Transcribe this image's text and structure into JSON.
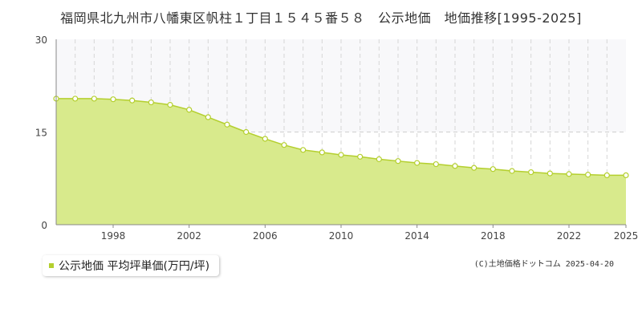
{
  "chart_data": {
    "type": "area",
    "title": "福岡県北九州市八幡東区帆柱１丁目１５４５番５８　公示地価　地価推移[1995-2025]",
    "xlabel": "",
    "ylabel": "",
    "ylim": [
      0,
      30
    ],
    "xlim": [
      1995,
      2025
    ],
    "y_ticks": [
      "0",
      "15",
      "30"
    ],
    "x_ticks": [
      "1998",
      "2002",
      "2006",
      "2010",
      "2014",
      "2018",
      "2022",
      "2025"
    ],
    "grid": true,
    "legend_position": "bottom-left",
    "series": [
      {
        "name": "公示地価 平均坪単価(万円/坪)",
        "color": "#d8ea8c",
        "line_color": "#b4cf2e",
        "x": [
          1995,
          1996,
          1997,
          1998,
          1999,
          2000,
          2001,
          2002,
          2003,
          2004,
          2005,
          2006,
          2007,
          2008,
          2009,
          2010,
          2011,
          2012,
          2013,
          2014,
          2015,
          2016,
          2017,
          2018,
          2019,
          2020,
          2021,
          2022,
          2023,
          2024,
          2025
        ],
        "values": [
          20.4,
          20.4,
          20.4,
          20.3,
          20.1,
          19.8,
          19.4,
          18.6,
          17.4,
          16.2,
          15.0,
          13.9,
          12.9,
          12.1,
          11.7,
          11.3,
          11.0,
          10.6,
          10.3,
          10.0,
          9.8,
          9.5,
          9.2,
          9.0,
          8.7,
          8.5,
          8.3,
          8.2,
          8.1,
          8.0,
          8.0
        ]
      }
    ]
  },
  "legend": {
    "label": "公示地価 平均坪単価(万円/坪)"
  },
  "credit": "(C)土地価格ドットコム 2025-04-20"
}
